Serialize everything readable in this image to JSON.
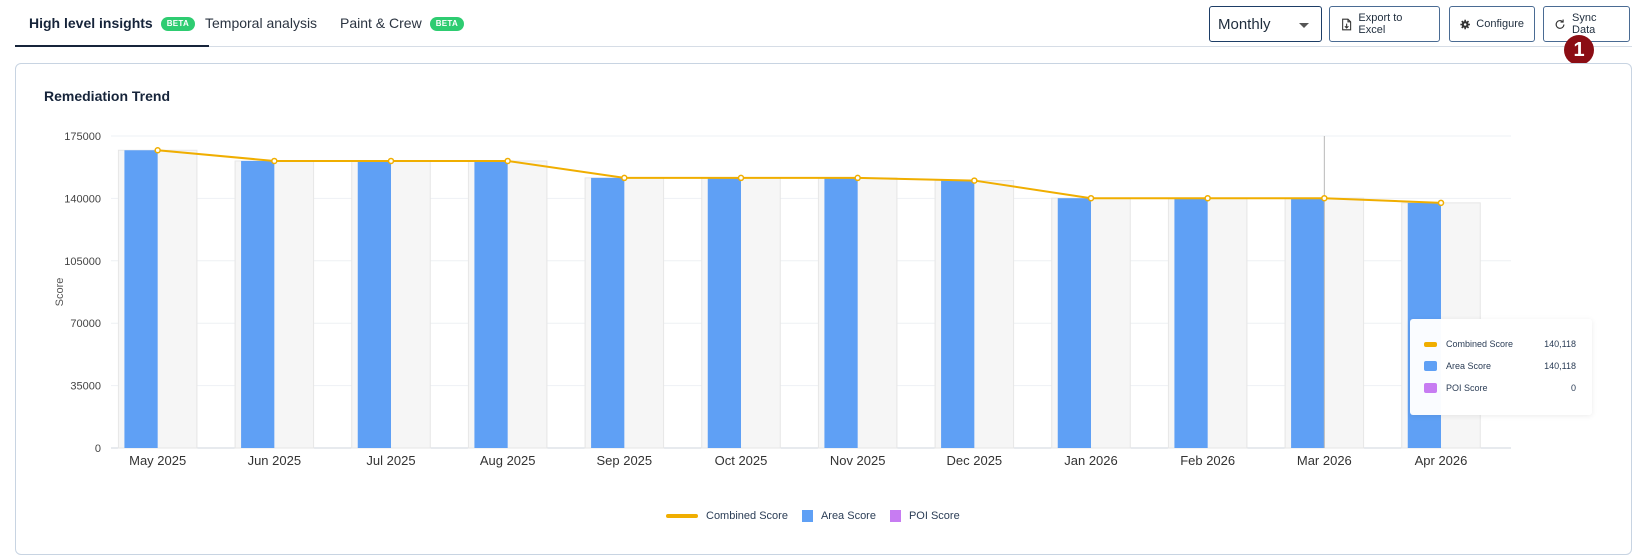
{
  "tabs": [
    {
      "label": "High level insights",
      "badge": "BETA"
    },
    {
      "label": "Temporal analysis",
      "badge": ""
    },
    {
      "label": "Paint & Crew",
      "badge": "BETA"
    }
  ],
  "toolbar": {
    "period_select": "Monthly",
    "export_label": "Export to Excel",
    "configure_label": "Configure",
    "sync_label": "Sync Data",
    "marker": "1"
  },
  "card": {
    "title": "Remediation Trend"
  },
  "colors": {
    "combined": "#f0ae00",
    "area": "#5fa0f5",
    "poi": "#c77cf2",
    "ghost": "#f6f6f6"
  },
  "chart_data": {
    "type": "bar",
    "title": "Remediation Trend",
    "xlabel": "",
    "ylabel": "Score",
    "ylim": [
      0,
      175000
    ],
    "yticks": [
      0,
      35000,
      70000,
      105000,
      140000,
      175000
    ],
    "categories": [
      "May 2025",
      "Jun 2025",
      "Jul 2025",
      "Aug 2025",
      "Sep 2025",
      "Oct 2025",
      "Nov 2025",
      "Dec 2025",
      "Jan 2026",
      "Feb 2026",
      "Mar 2026",
      "Apr 2026"
    ],
    "series": [
      {
        "name": "Combined Score",
        "type": "line",
        "values": [
          167000,
          161000,
          161000,
          161000,
          151500,
          151500,
          151500,
          150000,
          140118,
          140118,
          140118,
          137500
        ]
      },
      {
        "name": "Area Score",
        "type": "bar",
        "values": [
          167000,
          161000,
          161000,
          161000,
          151500,
          151500,
          151500,
          150000,
          140118,
          140118,
          140118,
          137500
        ]
      },
      {
        "name": "POI Score",
        "type": "bar",
        "values": [
          0,
          0,
          0,
          0,
          0,
          0,
          0,
          0,
          0,
          0,
          0,
          0
        ]
      }
    ],
    "grid": true,
    "legend": "bottom",
    "tooltip": {
      "category": "Mar 2026",
      "rows": [
        {
          "name": "Combined Score",
          "value": "140,118"
        },
        {
          "name": "Area Score",
          "value": "140,118"
        },
        {
          "name": "POI Score",
          "value": "0"
        }
      ]
    }
  }
}
